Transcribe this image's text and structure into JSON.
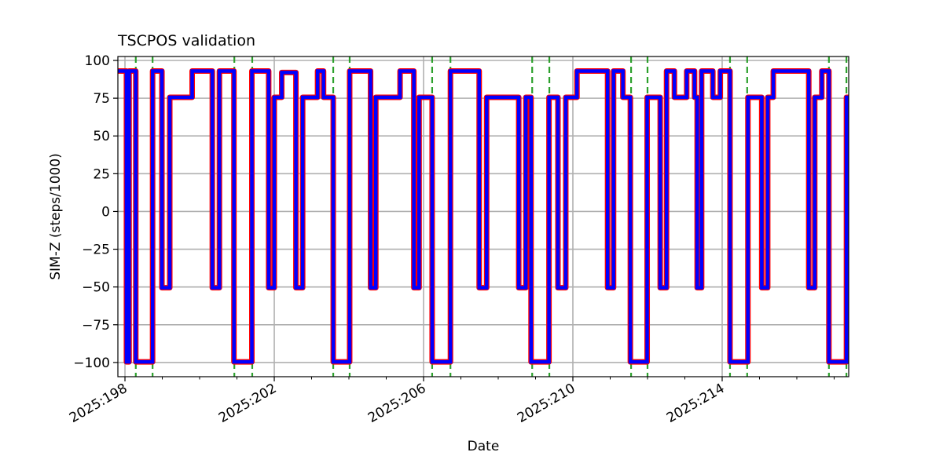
{
  "chart_data": {
    "type": "line",
    "title": "TSCPOS validation",
    "xlabel": "Date",
    "ylabel": "SIM-Z (steps/1000)",
    "xlim": [
      197.81,
      217.39
    ],
    "ylim": [
      -109.4,
      102.6
    ],
    "grid": true,
    "x_major_ticks": [
      198,
      202,
      206,
      210,
      214
    ],
    "x_tick_labels": [
      "2025:198",
      "2025:202",
      "2025:206",
      "2025:210",
      "2025:214"
    ],
    "x_minor_ticks": [
      199,
      200,
      201,
      203,
      204,
      205,
      207,
      208,
      209,
      211,
      212,
      213,
      215,
      216,
      217
    ],
    "y_ticks": [
      100,
      75,
      50,
      25,
      0,
      -25,
      -50,
      -75,
      -100
    ],
    "y_tick_labels": [
      "100",
      "75",
      "50",
      "25",
      "0",
      "−25",
      "−50",
      "−75",
      "−100"
    ],
    "series": [
      {
        "name": "TSCPOS",
        "style": "step-post",
        "colors": {
          "outer": "#0000ff",
          "inner": "#ff0000"
        },
        "x": [
          197.81,
          198.04,
          198.11,
          198.29,
          198.74,
          198.99,
          199.2,
          199.8,
          200.34,
          200.53,
          200.92,
          201.4,
          201.85,
          202.0,
          202.2,
          202.58,
          202.76,
          203.16,
          203.32,
          203.58,
          204.02,
          204.58,
          204.72,
          205.37,
          205.74,
          205.88,
          206.23,
          206.72,
          207.49,
          207.69,
          208.55,
          208.74,
          208.88,
          209.36,
          209.6,
          209.81,
          210.11,
          210.93,
          211.09,
          211.34,
          211.54,
          211.99,
          212.34,
          212.51,
          212.72,
          213.05,
          213.26,
          213.33,
          213.45,
          213.75,
          213.95,
          214.21,
          214.69,
          215.06,
          215.22,
          215.37,
          216.32,
          216.48,
          216.67,
          216.86,
          217.33,
          217.39
        ],
        "y": [
          93,
          -99.6,
          93,
          -99.6,
          93,
          -50.5,
          75.6,
          93,
          -50.5,
          93,
          -99.6,
          93,
          -50.5,
          75.6,
          92,
          -50.5,
          75.6,
          93,
          75.6,
          -99.6,
          93,
          -50.5,
          75.6,
          93,
          -50.5,
          75.6,
          -99.6,
          93,
          -50.5,
          75.6,
          -50.5,
          75.6,
          -99.6,
          75.6,
          -50.5,
          75.6,
          93,
          -50.5,
          93,
          75.6,
          -99.6,
          75.6,
          -50.5,
          93,
          75.6,
          93,
          75.6,
          -50.5,
          93,
          75.6,
          93,
          -99.6,
          75.6,
          -50.5,
          75.6,
          93,
          -50.5,
          75.6,
          93,
          -99.6,
          75.6,
          75.6
        ]
      }
    ],
    "vlines": {
      "color": "#2ca02c",
      "style": "dashed",
      "x": [
        198.29,
        198.74,
        200.93,
        201.41,
        203.58,
        204.02,
        206.23,
        206.72,
        208.91,
        209.37,
        211.56,
        212.0,
        214.21,
        214.67,
        216.86,
        217.33
      ]
    }
  }
}
